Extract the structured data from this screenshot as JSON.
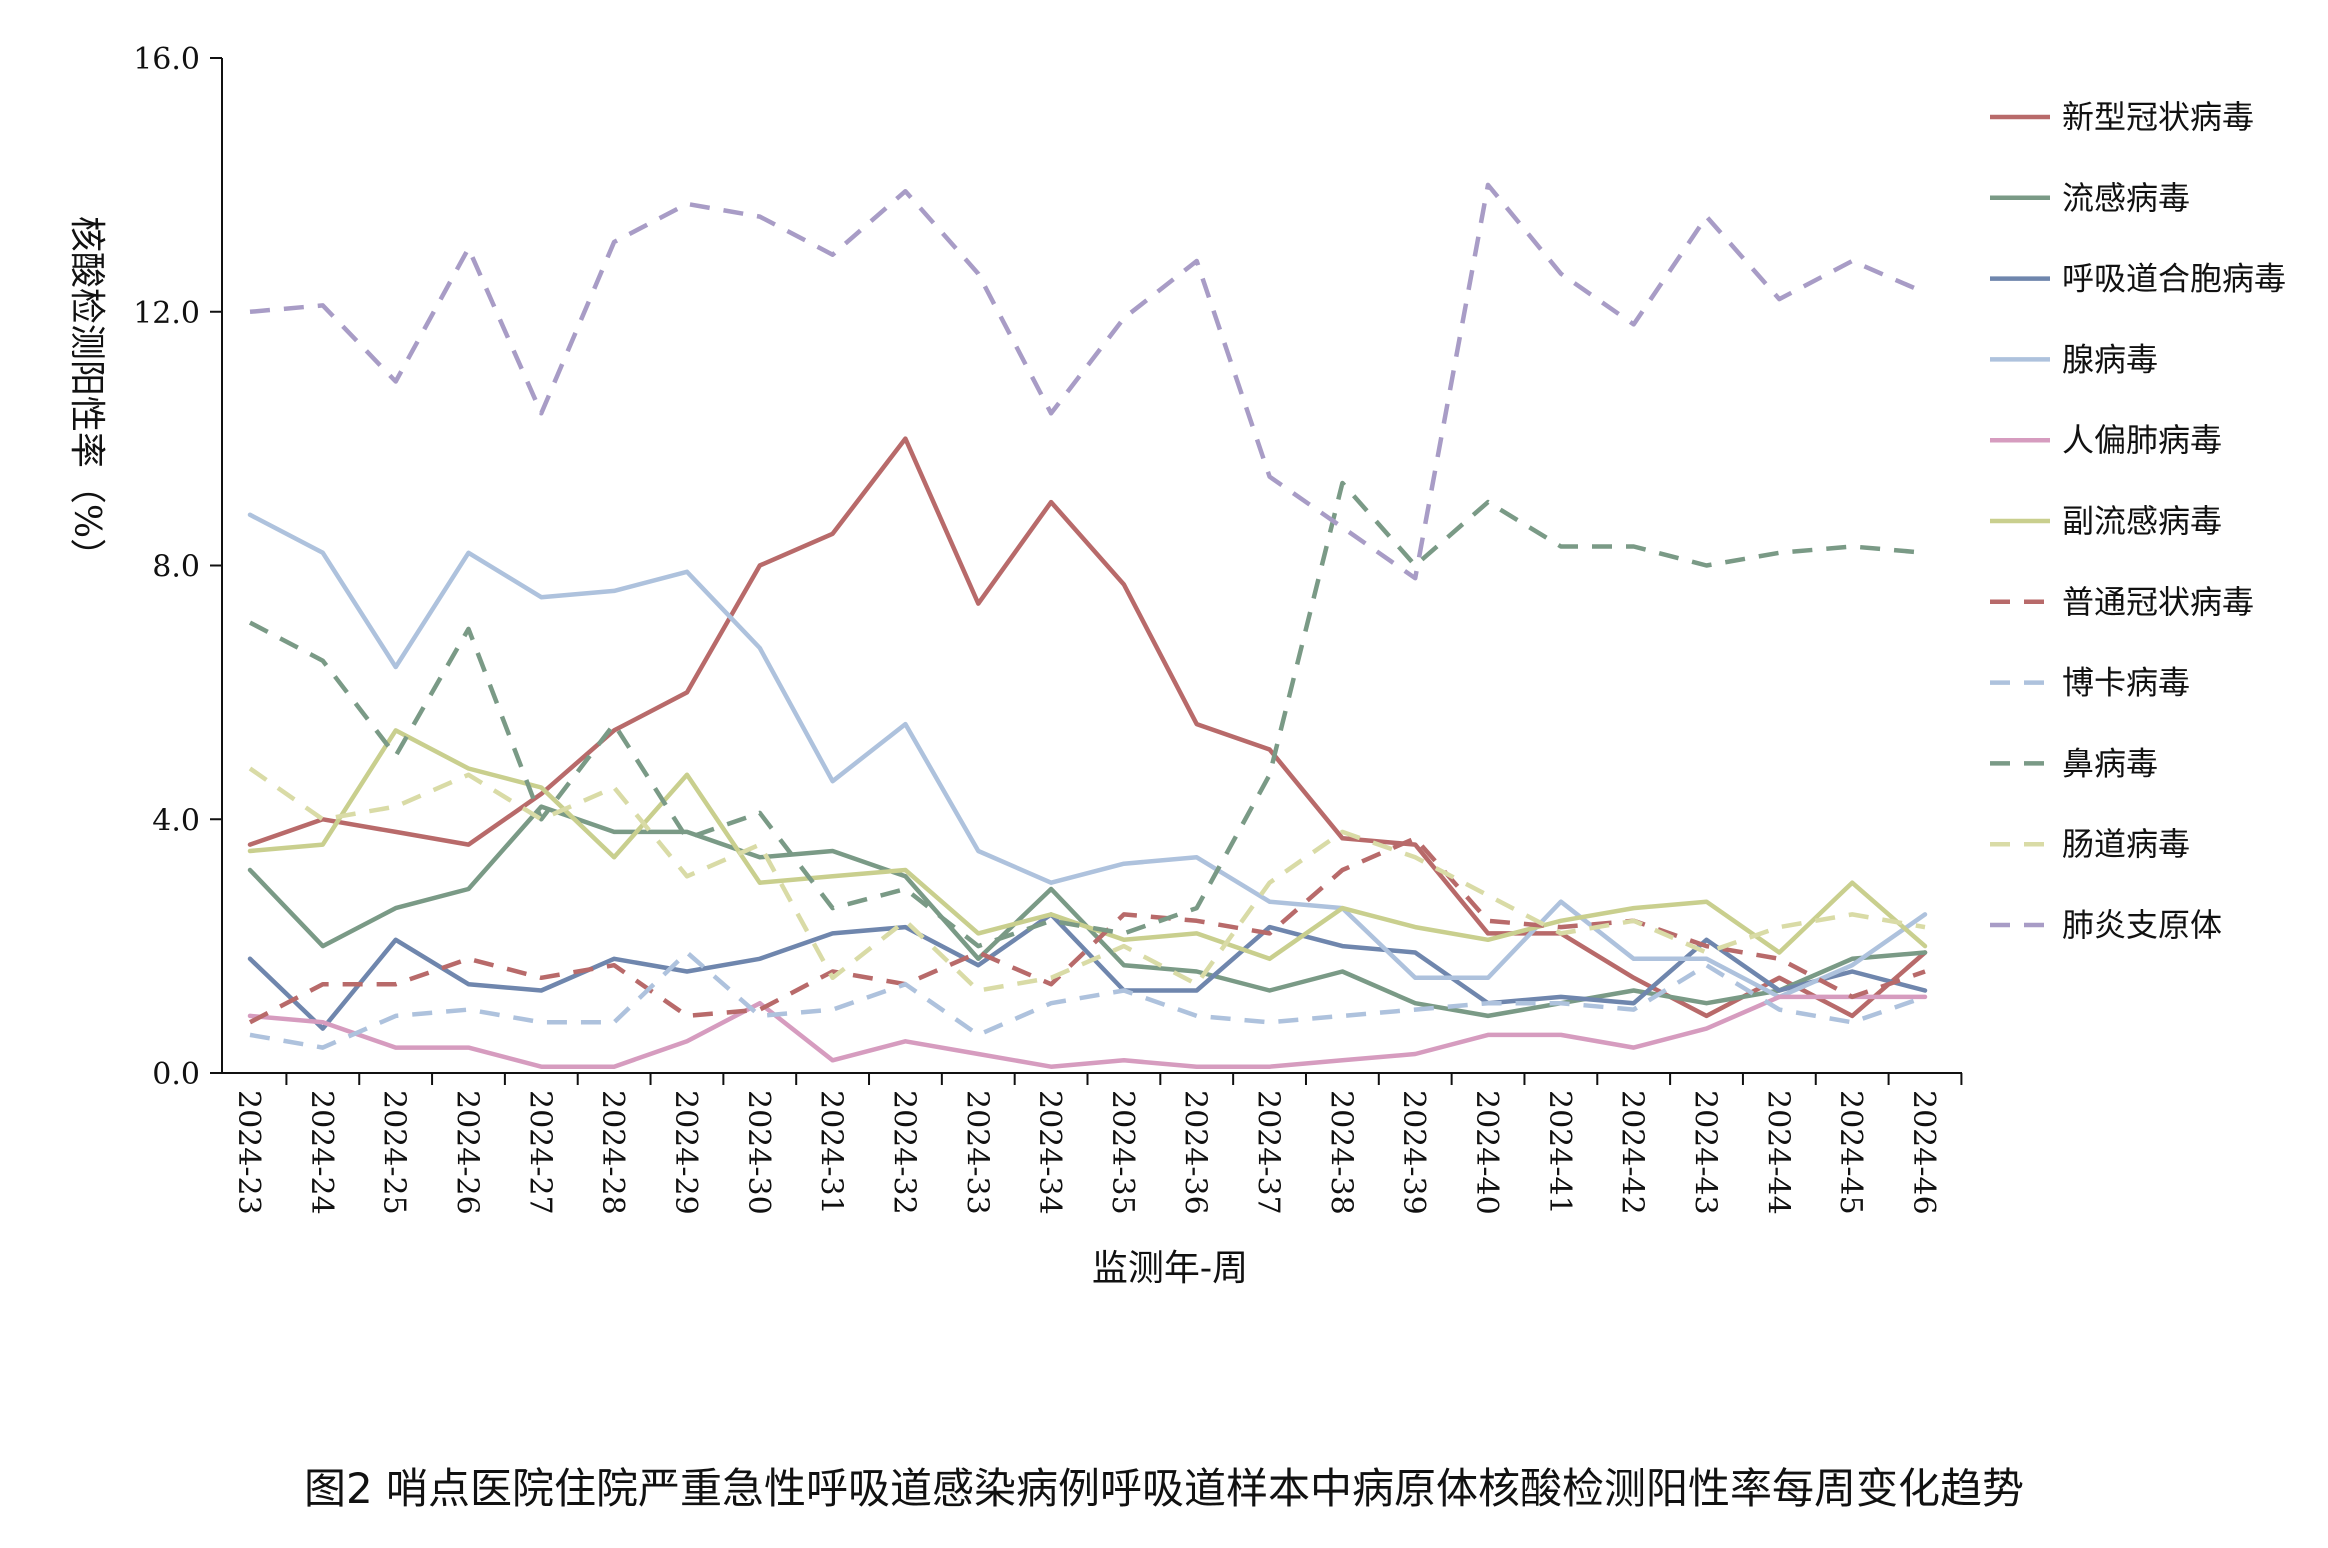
{
  "caption": "图2 哨点医院住院严重急性呼吸道感染病例呼吸道样本中病原体核酸检测阳性率每周变化趋势",
  "chart_data": {
    "type": "line",
    "title": "",
    "xlabel": "监测年-周",
    "ylabel": "核酸检测阳性率（%）",
    "ylim": [
      0,
      16
    ],
    "yticks": [
      "0.0",
      "4.0",
      "8.0",
      "12.0",
      "16.0"
    ],
    "ytick_values": [
      0,
      4,
      8,
      12,
      16
    ],
    "grid": false,
    "legend_position": "right",
    "x": [
      "2024-23",
      "2024-24",
      "2024-25",
      "2024-26",
      "2024-27",
      "2024-28",
      "2024-29",
      "2024-30",
      "2024-31",
      "2024-32",
      "2024-33",
      "2024-34",
      "2024-35",
      "2024-36",
      "2024-37",
      "2024-38",
      "2024-39",
      "2024-40",
      "2024-41",
      "2024-42",
      "2024-43",
      "2024-44",
      "2024-45",
      "2024-46"
    ],
    "series": [
      {
        "name": "新型冠状病毒",
        "color": "#b86a6a",
        "dash": "solid",
        "values": [
          3.6,
          4.0,
          3.8,
          3.6,
          4.4,
          5.4,
          6.0,
          8.0,
          8.5,
          10.0,
          7.4,
          9.0,
          7.7,
          5.5,
          5.1,
          3.7,
          3.6,
          2.2,
          2.2,
          1.5,
          0.9,
          1.5,
          0.9,
          1.9
        ]
      },
      {
        "name": "流感病毒",
        "color": "#7a9a86",
        "dash": "solid",
        "values": [
          3.2,
          2.0,
          2.6,
          2.9,
          4.2,
          3.8,
          3.8,
          3.4,
          3.5,
          3.1,
          1.8,
          2.9,
          1.7,
          1.6,
          1.3,
          1.6,
          1.1,
          0.9,
          1.1,
          1.3,
          1.1,
          1.3,
          1.8,
          1.9
        ]
      },
      {
        "name": "呼吸道合胞病毒",
        "color": "#6f86ad",
        "dash": "solid",
        "values": [
          1.8,
          0.7,
          2.1,
          1.4,
          1.3,
          1.8,
          1.6,
          1.8,
          2.2,
          2.3,
          1.7,
          2.5,
          1.3,
          1.3,
          2.3,
          2.0,
          1.9,
          1.1,
          1.2,
          1.1,
          2.1,
          1.3,
          1.6,
          1.3
        ]
      },
      {
        "name": "腺病毒",
        "color": "#aec2dd",
        "dash": "solid",
        "values": [
          8.8,
          8.2,
          6.4,
          8.2,
          7.5,
          7.6,
          7.9,
          6.7,
          4.6,
          5.5,
          3.5,
          3.0,
          3.3,
          3.4,
          2.7,
          2.6,
          1.5,
          1.5,
          2.7,
          1.8,
          1.8,
          1.2,
          1.7,
          2.5
        ]
      },
      {
        "name": "人偏肺病毒",
        "color": "#d69cbf",
        "dash": "solid",
        "values": [
          0.9,
          0.8,
          0.4,
          0.4,
          0.1,
          0.1,
          0.5,
          1.1,
          0.2,
          0.5,
          0.3,
          0.1,
          0.2,
          0.1,
          0.1,
          0.2,
          0.3,
          0.6,
          0.6,
          0.4,
          0.7,
          1.2,
          1.2,
          1.2
        ]
      },
      {
        "name": "副流感病毒",
        "color": "#c9cf8e",
        "dash": "solid",
        "values": [
          3.5,
          3.6,
          5.4,
          4.8,
          4.5,
          3.4,
          4.7,
          3.0,
          3.1,
          3.2,
          2.2,
          2.5,
          2.1,
          2.2,
          1.8,
          2.6,
          2.3,
          2.1,
          2.4,
          2.6,
          2.7,
          1.9,
          3.0,
          2.0
        ]
      },
      {
        "name": "普通冠状病毒",
        "color": "#b86a6a",
        "dash": "dashed",
        "values": [
          0.8,
          1.4,
          1.4,
          1.8,
          1.5,
          1.7,
          0.9,
          1.0,
          1.6,
          1.4,
          1.9,
          1.4,
          2.5,
          2.4,
          2.2,
          3.2,
          3.7,
          2.4,
          2.3,
          2.4,
          2.0,
          1.8,
          1.2,
          1.6
        ]
      },
      {
        "name": "博卡病毒",
        "color": "#aec2dd",
        "dash": "dashed",
        "values": [
          0.6,
          0.4,
          0.9,
          1.0,
          0.8,
          0.8,
          1.9,
          0.9,
          1.0,
          1.4,
          0.6,
          1.1,
          1.3,
          0.9,
          0.8,
          0.9,
          1.0,
          1.1,
          1.1,
          1.0,
          1.7,
          1.0,
          0.8,
          1.2
        ]
      },
      {
        "name": "鼻病毒",
        "color": "#7a9a86",
        "dash": "dashed",
        "values": [
          7.1,
          6.5,
          5.0,
          7.0,
          4.0,
          5.5,
          3.7,
          4.1,
          2.6,
          2.9,
          2.0,
          2.4,
          2.2,
          2.6,
          4.7,
          9.3,
          8.0,
          9.0,
          8.3,
          8.3,
          8.0,
          8.2,
          8.3,
          8.2
        ]
      },
      {
        "name": "肠道病毒",
        "color": "#d9dba6",
        "dash": "dashed",
        "values": [
          4.8,
          4.0,
          4.2,
          4.7,
          4.0,
          4.5,
          3.1,
          3.6,
          1.5,
          2.4,
          1.3,
          1.5,
          2.0,
          1.4,
          3.0,
          3.8,
          3.4,
          2.8,
          2.2,
          2.4,
          1.9,
          2.3,
          2.5,
          2.3
        ]
      },
      {
        "name": "肺炎支原体",
        "color": "#a89cc6",
        "dash": "dashed",
        "values": [
          12.0,
          12.1,
          10.9,
          13.0,
          10.4,
          13.1,
          13.7,
          13.5,
          12.9,
          13.9,
          12.6,
          10.4,
          11.9,
          12.8,
          9.4,
          8.6,
          7.8,
          14.0,
          12.6,
          11.8,
          13.5,
          12.2,
          12.8,
          12.3
        ]
      }
    ]
  }
}
